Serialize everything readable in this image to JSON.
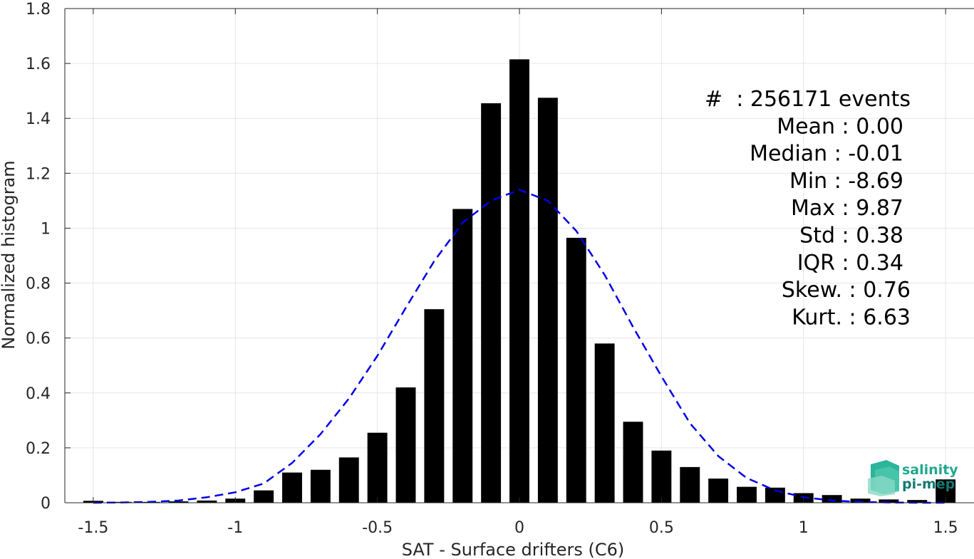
{
  "chart_data": {
    "type": "bar",
    "xlabel": "SAT - Surface drifters (C6)",
    "ylabel": "Normalized histogram",
    "xlim": [
      -1.6,
      1.6
    ],
    "ylim": [
      0,
      1.8
    ],
    "x_ticks": [
      "-1.5",
      "-1",
      "-0.5",
      "0",
      "0.5",
      "1",
      "1.5"
    ],
    "x_tick_values": [
      -1.5,
      -1,
      -0.5,
      0,
      0.5,
      1,
      1.5
    ],
    "y_ticks": [
      "0",
      "0.2",
      "0.4",
      "0.6",
      "0.8",
      "1",
      "1.2",
      "1.4",
      "1.6",
      "1.8"
    ],
    "y_tick_values": [
      0,
      0.2,
      0.4,
      0.6,
      0.8,
      1,
      1.2,
      1.4,
      1.6,
      1.8
    ],
    "grid": true,
    "bar_width": 0.07,
    "bars": {
      "x": [
        -1.5,
        -1.4,
        -1.3,
        -1.2,
        -1.1,
        -1.0,
        -0.9,
        -0.8,
        -0.7,
        -0.6,
        -0.5,
        -0.4,
        -0.3,
        -0.2,
        -0.1,
        0.0,
        0.1,
        0.2,
        0.3,
        0.4,
        0.5,
        0.6,
        0.7,
        0.8,
        0.9,
        1.0,
        1.1,
        1.2,
        1.3,
        1.4,
        1.5
      ],
      "values": [
        0.007,
        0.003,
        0.003,
        0.005,
        0.008,
        0.015,
        0.045,
        0.11,
        0.12,
        0.165,
        0.255,
        0.42,
        0.705,
        1.07,
        1.455,
        1.615,
        1.475,
        0.965,
        0.58,
        0.295,
        0.19,
        0.13,
        0.088,
        0.058,
        0.055,
        0.035,
        0.028,
        0.015,
        0.012,
        0.01,
        0.085
      ],
      "color": "#000000"
    },
    "fit": {
      "type": "gaussian-dashed",
      "color": "#0000e6",
      "x": [
        -1.5,
        -1.4,
        -1.3,
        -1.2,
        -1.1,
        -1.0,
        -0.9,
        -0.8,
        -0.7,
        -0.6,
        -0.5,
        -0.4,
        -0.3,
        -0.2,
        -0.1,
        0.0,
        0.1,
        0.2,
        0.3,
        0.4,
        0.5,
        0.6,
        0.7,
        0.8,
        0.9,
        1.0,
        1.1,
        1.2,
        1.3,
        1.4,
        1.5
      ],
      "values": [
        0.0,
        0.001,
        0.003,
        0.008,
        0.02,
        0.038,
        0.07,
        0.145,
        0.25,
        0.38,
        0.535,
        0.71,
        0.88,
        1.02,
        1.1,
        1.14,
        1.1,
        0.99,
        0.83,
        0.64,
        0.46,
        0.29,
        0.17,
        0.09,
        0.045,
        0.02,
        0.008,
        0.003,
        0.001,
        0.0,
        0.0
      ]
    },
    "annotations": [
      "#  : 256171 events",
      "Mean : 0.00",
      "Median : -0.01",
      "Min : -8.69",
      "Max : 9.87",
      "Std : 0.38",
      "IQR : 0.34",
      "Skew. : 0.76",
      "Kurt. : 6.63"
    ]
  },
  "logo": {
    "line1": "salinity",
    "line2": "pi-mep",
    "color1": "#1fa88f",
    "color2": "#147a70"
  }
}
